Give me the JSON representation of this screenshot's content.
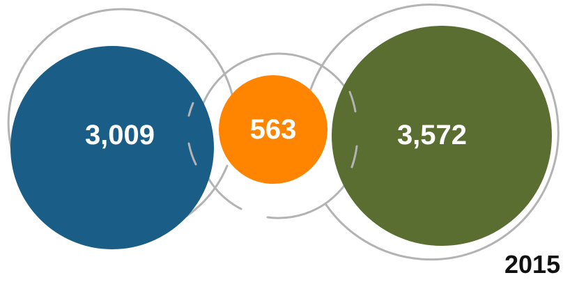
{
  "circles": {
    "left": {
      "value": "3,009",
      "color": "#1a5e88"
    },
    "middle": {
      "value": "563",
      "color": "#ff8400"
    },
    "right": {
      "value": "3,572",
      "color": "#5a6e31"
    }
  },
  "ring_color": "#b3b3b3",
  "year": "2015"
}
